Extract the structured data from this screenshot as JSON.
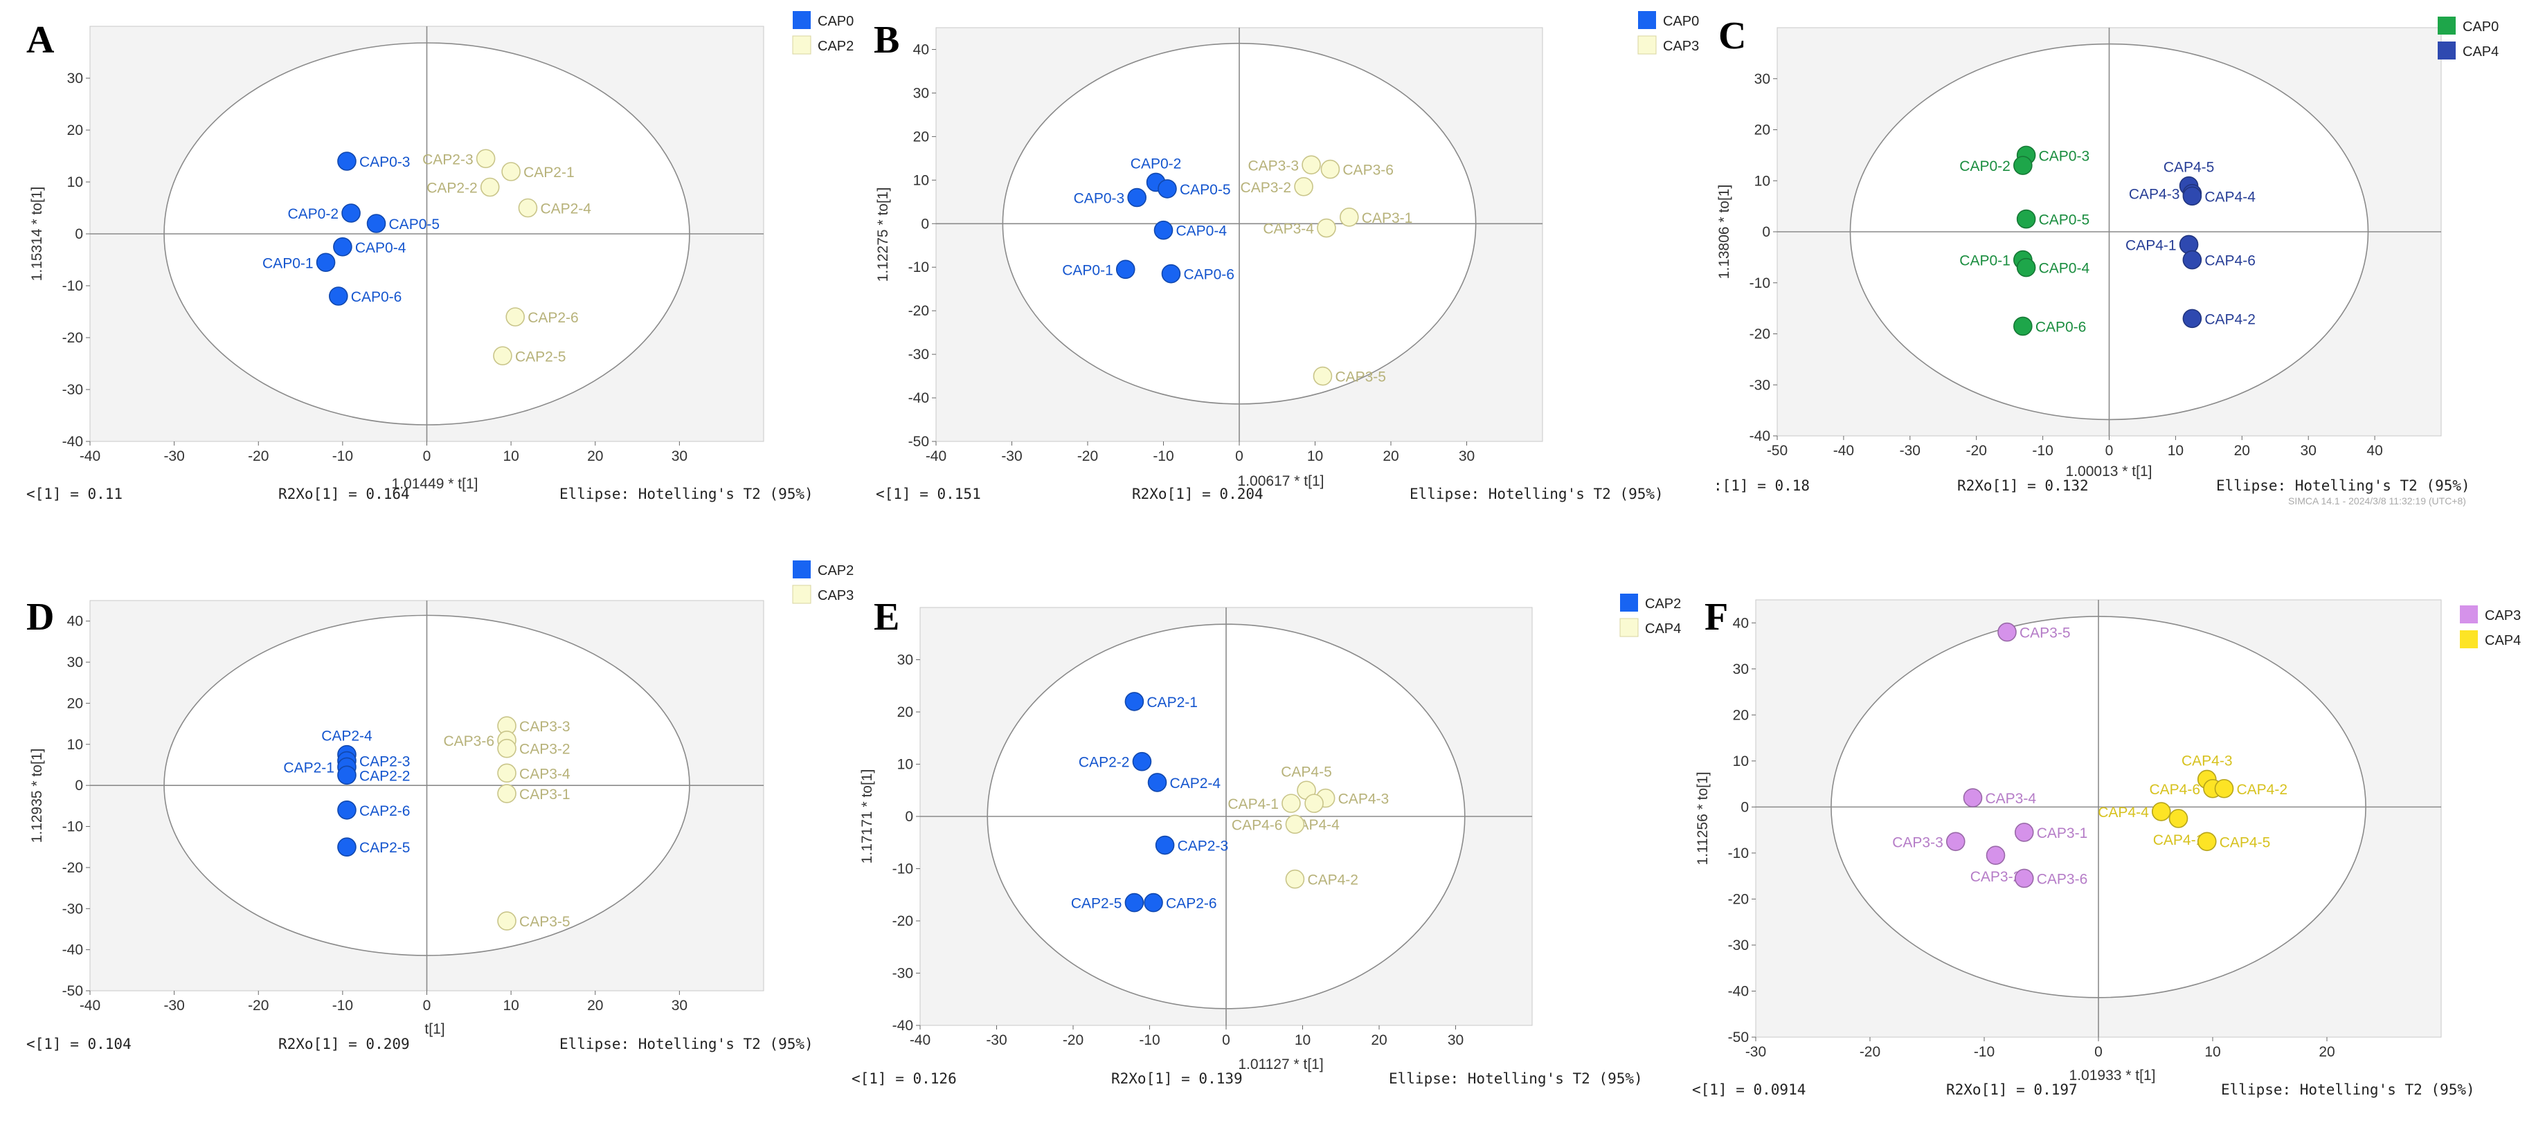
{
  "chart_data": [
    {
      "type": "scatter",
      "letter": "A",
      "xlabel": "1.01449 * t[1]",
      "ylabel": "1.15314 * to[1]",
      "xlim": [
        -40,
        40
      ],
      "ylim": [
        -40,
        40
      ],
      "xticks": [
        -40,
        -30,
        -20,
        -10,
        0,
        10,
        20,
        30
      ],
      "yticks": [
        -40,
        -30,
        -20,
        -10,
        0,
        10,
        20,
        30
      ],
      "ellipse": "Hotelling's T2 (95%)",
      "footer": [
        "<[1] = 0.11",
        "R2Xo[1] = 0.164",
        "Ellipse: Hotelling's T2 (95%)"
      ],
      "series": [
        {
          "name": "CAP0",
          "color": "#1864f2",
          "points": [
            {
              "label": "CAP0-3",
              "x": -9.5,
              "y": 14
            },
            {
              "label": "CAP0-2",
              "x": -9,
              "y": 4
            },
            {
              "label": "CAP0-5",
              "x": -6,
              "y": 2
            },
            {
              "label": "CAP0-4",
              "x": -10,
              "y": -2.5
            },
            {
              "label": "CAP0-1",
              "x": -12,
              "y": -5.5
            },
            {
              "label": "CAP0-6",
              "x": -10.5,
              "y": -12
            }
          ]
        },
        {
          "name": "CAP2",
          "color": "#fafad2",
          "points": [
            {
              "label": "CAP2-3",
              "x": 7,
              "y": 14.5
            },
            {
              "label": "CAP2-1",
              "x": 10,
              "y": 12
            },
            {
              "label": "CAP2-2",
              "x": 7.5,
              "y": 9
            },
            {
              "label": "CAP2-4",
              "x": 12,
              "y": 5
            },
            {
              "label": "CAP2-6",
              "x": 10.5,
              "y": -16
            },
            {
              "label": "CAP2-5",
              "x": 9,
              "y": -23.5
            }
          ]
        }
      ]
    },
    {
      "type": "scatter",
      "letter": "B",
      "xlabel": "1.00617 * t[1]",
      "ylabel": "1.12275 * to[1]",
      "xlim": [
        -40,
        40
      ],
      "ylim": [
        -50,
        45
      ],
      "xticks": [
        -40,
        -30,
        -20,
        -10,
        0,
        10,
        20,
        30
      ],
      "yticks": [
        -50,
        -40,
        -30,
        -20,
        -10,
        0,
        10,
        20,
        30,
        40
      ],
      "ellipse": "Hotelling's T2 (95%)",
      "footer": [
        "<[1] = 0.151",
        "R2Xo[1] = 0.204",
        "Ellipse: Hotelling's T2 (95%)"
      ],
      "series": [
        {
          "name": "CAP0",
          "color": "#1864f2",
          "points": [
            {
              "label": "CAP0-2",
              "x": -11,
              "y": 9.5
            },
            {
              "label": "CAP0-5",
              "x": -9.5,
              "y": 8
            },
            {
              "label": "CAP0-3",
              "x": -13.5,
              "y": 6
            },
            {
              "label": "CAP0-4",
              "x": -10,
              "y": -1.5
            },
            {
              "label": "CAP0-1",
              "x": -15,
              "y": -10.5
            },
            {
              "label": "CAP0-6",
              "x": -9,
              "y": -11.5
            }
          ]
        },
        {
          "name": "CAP3",
          "color": "#fafad2",
          "points": [
            {
              "label": "CAP3-3",
              "x": 9.5,
              "y": 13.5
            },
            {
              "label": "CAP3-6",
              "x": 12,
              "y": 12.5
            },
            {
              "label": "CAP3-2",
              "x": 8.5,
              "y": 8.5
            },
            {
              "label": "CAP3-1",
              "x": 14.5,
              "y": 1.5
            },
            {
              "label": "CAP3-4",
              "x": 11.5,
              "y": -1
            },
            {
              "label": "CAP3-5",
              "x": 11,
              "y": -35
            }
          ]
        }
      ]
    },
    {
      "type": "scatter",
      "letter": "C",
      "xlabel": "1.00013 * t[1]",
      "ylabel": "1.13806 * to[1]",
      "xlim": [
        -50,
        50
      ],
      "ylim": [
        -40,
        40
      ],
      "xticks": [
        -50,
        -40,
        -30,
        -20,
        -10,
        0,
        10,
        20,
        30,
        40
      ],
      "yticks": [
        -40,
        -30,
        -20,
        -10,
        0,
        10,
        20,
        30
      ],
      "ellipse": "Hotelling's T2 (95%)",
      "footer": [
        ":[1] = 0.18",
        "R2Xo[1] = 0.132",
        "Ellipse: Hotelling's T2 (95%)"
      ],
      "watermark": "SIMCA 14.1 - 2024/3/8 11:32:19 (UTC+8)",
      "series": [
        {
          "name": "CAP0",
          "color": "#1ea64a",
          "points": [
            {
              "label": "CAP0-3",
              "x": -12.5,
              "y": 15
            },
            {
              "label": "CAP0-2",
              "x": -13,
              "y": 13
            },
            {
              "label": "CAP0-5",
              "x": -12.5,
              "y": 2.5
            },
            {
              "label": "CAP0-1",
              "x": -13,
              "y": -5.5
            },
            {
              "label": "CAP0-4",
              "x": -12.5,
              "y": -7
            },
            {
              "label": "CAP0-6",
              "x": -13,
              "y": -18.5
            }
          ]
        },
        {
          "name": "CAP4",
          "color": "#2e49b0",
          "points": [
            {
              "label": "CAP4-5",
              "x": 12,
              "y": 9
            },
            {
              "label": "CAP4-3",
              "x": 12.5,
              "y": 7.5
            },
            {
              "label": "CAP4-4",
              "x": 12.5,
              "y": 7
            },
            {
              "label": "CAP4-1",
              "x": 12,
              "y": -2.5
            },
            {
              "label": "CAP4-6",
              "x": 12.5,
              "y": -5.5
            },
            {
              "label": "CAP4-2",
              "x": 12.5,
              "y": -17
            }
          ]
        }
      ]
    },
    {
      "type": "scatter",
      "letter": "D",
      "xlabel": "t[1]",
      "ylabel": "1.12935 * to[1]",
      "xlim": [
        -40,
        40
      ],
      "ylim": [
        -50,
        45
      ],
      "xticks": [
        -40,
        -30,
        -20,
        -10,
        0,
        10,
        20,
        30
      ],
      "yticks": [
        -50,
        -40,
        -30,
        -20,
        -10,
        0,
        10,
        20,
        30,
        40
      ],
      "ellipse": "Hotelling's T2 (95%)",
      "footer": [
        "<[1] = 0.104",
        "R2Xo[1] = 0.209",
        "Ellipse: Hotelling's T2 (95%)"
      ],
      "series": [
        {
          "name": "CAP2",
          "color": "#1864f2",
          "points": [
            {
              "label": "CAP2-4",
              "x": -9.5,
              "y": 7.5
            },
            {
              "label": "CAP2-3",
              "x": -9.5,
              "y": 6
            },
            {
              "label": "CAP2-1",
              "x": -9.5,
              "y": 4.5
            },
            {
              "label": "CAP2-2",
              "x": -9.5,
              "y": 2.5
            },
            {
              "label": "CAP2-6",
              "x": -9.5,
              "y": -6
            },
            {
              "label": "CAP2-5",
              "x": -9.5,
              "y": -15
            }
          ]
        },
        {
          "name": "CAP3",
          "color": "#fafad2",
          "points": [
            {
              "label": "CAP3-3",
              "x": 9.5,
              "y": 14.5
            },
            {
              "label": "CAP3-6",
              "x": 9.5,
              "y": 11
            },
            {
              "label": "CAP3-2",
              "x": 9.5,
              "y": 9
            },
            {
              "label": "CAP3-4",
              "x": 9.5,
              "y": 3
            },
            {
              "label": "CAP3-1",
              "x": 9.5,
              "y": -2
            },
            {
              "label": "CAP3-5",
              "x": 9.5,
              "y": -33
            }
          ]
        }
      ]
    },
    {
      "type": "scatter",
      "letter": "E",
      "xlabel": "1.01127 * t[1]",
      "ylabel": "1.17171 * to[1]",
      "xlim": [
        -40,
        40
      ],
      "ylim": [
        -40,
        40
      ],
      "xticks": [
        -40,
        -30,
        -20,
        -10,
        0,
        10,
        20,
        30
      ],
      "yticks": [
        -40,
        -30,
        -20,
        -10,
        0,
        10,
        20,
        30
      ],
      "ellipse": "Hotelling's T2 (95%)",
      "footer": [
        "<[1] = 0.126",
        "R2Xo[1] = 0.139",
        "Ellipse: Hotelling's T2 (95%)"
      ],
      "series": [
        {
          "name": "CAP2",
          "color": "#1864f2",
          "points": [
            {
              "label": "CAP2-1",
              "x": -12,
              "y": 22
            },
            {
              "label": "CAP2-2",
              "x": -11,
              "y": 10.5
            },
            {
              "label": "CAP2-4",
              "x": -9,
              "y": 6.5
            },
            {
              "label": "CAP2-3",
              "x": -8,
              "y": -5.5
            },
            {
              "label": "CAP2-5",
              "x": -12,
              "y": -16.5
            },
            {
              "label": "CAP2-6",
              "x": -9.5,
              "y": -16.5
            }
          ]
        },
        {
          "name": "CAP4",
          "color": "#fafad2",
          "points": [
            {
              "label": "CAP4-5",
              "x": 10.5,
              "y": 5
            },
            {
              "label": "CAP4-1",
              "x": 8.5,
              "y": 2.5
            },
            {
              "label": "CAP4-3",
              "x": 13,
              "y": 3.5
            },
            {
              "label": "CAP4-4",
              "x": 11.5,
              "y": 2.5
            },
            {
              "label": "CAP4-6",
              "x": 9,
              "y": -1.5
            },
            {
              "label": "CAP4-2",
              "x": 9,
              "y": -12
            }
          ]
        }
      ]
    },
    {
      "type": "scatter",
      "letter": "F",
      "xlabel": "1.01933 * t[1]",
      "ylabel": "1.11256 * to[1]",
      "xlim": [
        -30,
        30
      ],
      "ylim": [
        -50,
        45
      ],
      "xticks": [
        -30,
        -20,
        -10,
        0,
        10,
        20
      ],
      "yticks": [
        -50,
        -40,
        -30,
        -20,
        -10,
        0,
        10,
        20,
        30,
        40
      ],
      "ellipse": "Hotelling's T2 (95%)",
      "footer": [
        "<[1] = 0.0914",
        "R2Xo[1] = 0.197",
        "Ellipse: Hotelling's T2 (95%)"
      ],
      "series": [
        {
          "name": "CAP3",
          "color": "#d592ea",
          "points": [
            {
              "label": "CAP3-5",
              "x": -8,
              "y": 38
            },
            {
              "label": "CAP3-4",
              "x": -11,
              "y": 2
            },
            {
              "label": "CAP3-1",
              "x": -6.5,
              "y": -5.5
            },
            {
              "label": "CAP3-3",
              "x": -12.5,
              "y": -7.5
            },
            {
              "label": "CAP3-2",
              "x": -9,
              "y": -10.5
            },
            {
              "label": "CAP3-6",
              "x": -6.5,
              "y": -15.5
            }
          ]
        },
        {
          "name": "CAP4",
          "color": "#fde425",
          "points": [
            {
              "label": "CAP4-3",
              "x": 9.5,
              "y": 6
            },
            {
              "label": "CAP4-6",
              "x": 10,
              "y": 4
            },
            {
              "label": "CAP4-2",
              "x": 11,
              "y": 4
            },
            {
              "label": "CAP4-4",
              "x": 5.5,
              "y": -1
            },
            {
              "label": "CAP4-1",
              "x": 7,
              "y": -2.5
            },
            {
              "label": "CAP4-5",
              "x": 9.5,
              "y": -7.5
            }
          ]
        }
      ]
    }
  ]
}
